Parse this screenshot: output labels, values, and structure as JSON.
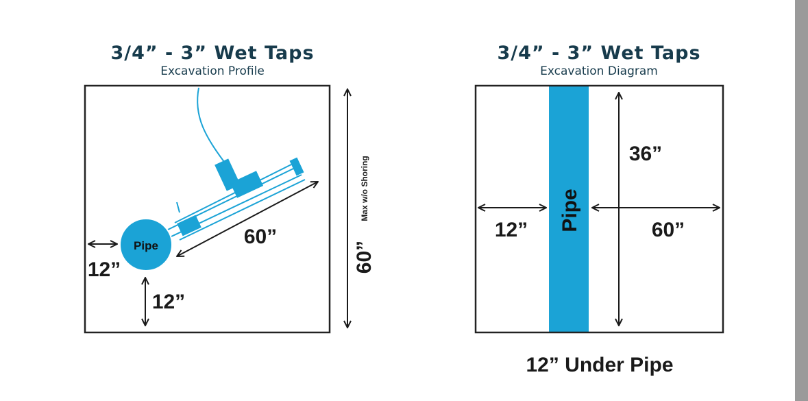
{
  "left": {
    "title": "3/4” - 3” Wet Taps",
    "subtitle": "Excavation Profile",
    "pipe_label": "Pipe",
    "side_clearance": "12”",
    "bottom_clearance": "12”",
    "reach": "60”",
    "depth": "60”",
    "depth_note": "Max w/o Shoring"
  },
  "right": {
    "title": "3/4” - 3” Wet Taps",
    "subtitle": "Excavation Diagram",
    "pipe_label": "Pipe",
    "height": "36”",
    "left_width": "12”",
    "right_width": "60”",
    "caption": "12” Under Pipe"
  }
}
